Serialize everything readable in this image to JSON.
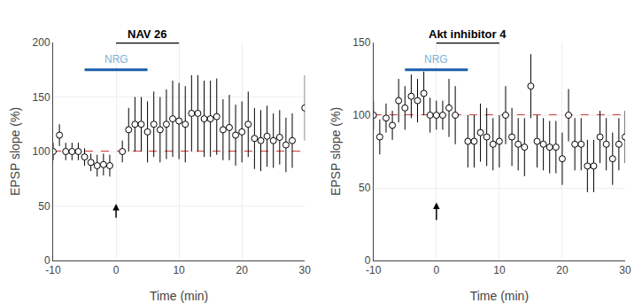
{
  "chart_data": [
    {
      "type": "scatter",
      "title": "NAV 26",
      "xlabel": "Time (min)",
      "ylabel": "EPSP slope (%)",
      "xlim": [
        -10,
        30
      ],
      "xticks": [
        -10,
        0,
        10,
        20,
        30
      ],
      "ylim": [
        0,
        200
      ],
      "yticks": [
        0,
        50,
        100,
        150,
        200
      ],
      "x": [
        -10,
        -9,
        -8,
        -7,
        -6,
        -5,
        -4,
        -3,
        -2,
        -1,
        1,
        2,
        3,
        4,
        5,
        6,
        7,
        8,
        9,
        10,
        11,
        12,
        13,
        14,
        15,
        16,
        17,
        18,
        19,
        20,
        21,
        22,
        23,
        24,
        25,
        26,
        27,
        28,
        30
      ],
      "values": [
        100,
        115,
        100,
        100,
        100,
        95,
        90,
        87,
        88,
        87,
        100,
        120,
        125,
        125,
        118,
        125,
        120,
        125,
        130,
        128,
        125,
        135,
        135,
        130,
        130,
        132,
        120,
        122,
        115,
        118,
        125,
        112,
        110,
        114,
        110,
        113,
        106,
        110,
        140
      ],
      "errors": [
        8,
        10,
        8,
        8,
        8,
        8,
        8,
        10,
        10,
        10,
        10,
        20,
        25,
        25,
        28,
        30,
        30,
        32,
        35,
        35,
        35,
        35,
        35,
        35,
        35,
        35,
        28,
        30,
        28,
        28,
        30,
        28,
        28,
        28,
        25,
        25,
        25,
        25,
        30
      ],
      "color": "#000000",
      "marker": "open_circle",
      "reference_line": {
        "y": 100,
        "color": "#CC0000",
        "line_style": "dashed"
      },
      "title_bar": {
        "x": [
          0,
          10
        ],
        "color": "#000000"
      },
      "nrg_bar": {
        "label": "NRG",
        "x": [
          -5,
          5
        ],
        "color": "#1A5FA8",
        "label_color": "#7BAFD4"
      },
      "arrow": {
        "x": 0,
        "y_tail": 38,
        "y_tip": 52
      }
    },
    {
      "type": "scatter",
      "title": "Akt inhibitor 4",
      "xlabel": "Time (min)",
      "ylabel": "EPSP slope (%)",
      "xlim": [
        -10,
        30
      ],
      "xticks": [
        -10,
        0,
        10,
        20,
        30
      ],
      "ylim": [
        0,
        150
      ],
      "yticks": [
        0,
        50,
        100,
        150
      ],
      "x": [
        -10,
        -9,
        -8,
        -7,
        -6,
        -5,
        -4,
        -3,
        -2,
        -1,
        0,
        1,
        2,
        3,
        5,
        6,
        7,
        8,
        9,
        10,
        11,
        12,
        13,
        14,
        15,
        16,
        17,
        18,
        19,
        20,
        21,
        22,
        23,
        24,
        25,
        26,
        27,
        28,
        29,
        30
      ],
      "values": [
        100,
        85,
        98,
        93,
        110,
        105,
        113,
        110,
        115,
        100,
        100,
        100,
        105,
        100,
        82,
        82,
        88,
        85,
        80,
        82,
        100,
        85,
        80,
        78,
        120,
        82,
        80,
        78,
        78,
        70,
        100,
        80,
        80,
        65,
        65,
        85,
        80,
        70,
        80,
        85
      ],
      "errors": [
        10,
        12,
        10,
        10,
        15,
        15,
        15,
        15,
        15,
        12,
        10,
        10,
        20,
        20,
        18,
        18,
        20,
        20,
        18,
        18,
        20,
        20,
        18,
        20,
        22,
        18,
        18,
        18,
        18,
        18,
        18,
        18,
        18,
        18,
        18,
        18,
        18,
        18,
        18,
        18
      ],
      "color": "#000000",
      "marker": "open_circle",
      "reference_line": {
        "y": 100,
        "color": "#CC0000",
        "line_style": "dashed"
      },
      "title_bar": {
        "x": [
          0,
          10
        ],
        "color": "#000000"
      },
      "nrg_bar": {
        "label": "NRG",
        "x": [
          -5,
          5
        ],
        "color": "#1A5FA8",
        "label_color": "#7BAFD4"
      },
      "arrow": {
        "x": 0,
        "y_tail": 27,
        "y_tip": 40
      }
    }
  ]
}
